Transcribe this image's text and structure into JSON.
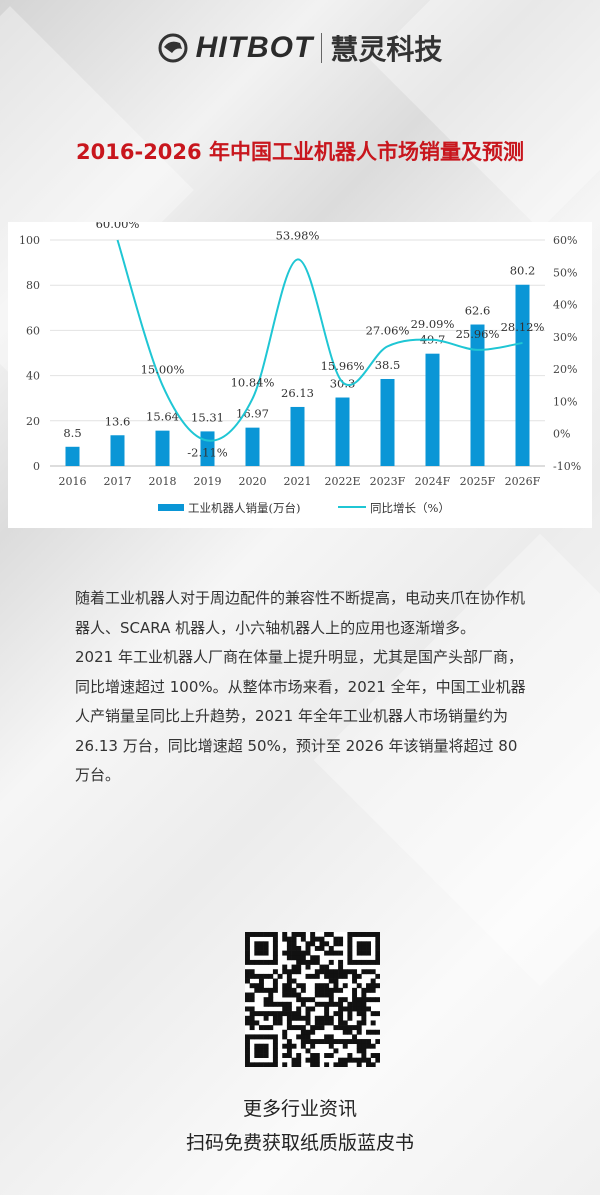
{
  "header": {
    "brand": "HITBOT",
    "brand_cn": "慧灵科技"
  },
  "title": "2016-2026 年中国工业机器人市场销量及预测",
  "chart_data": {
    "type": "bar+line",
    "title": "",
    "categories": [
      "2016",
      "2017",
      "2018",
      "2019",
      "2020",
      "2021",
      "2022E",
      "2023F",
      "2024F",
      "2025F",
      "2026F"
    ],
    "series": [
      {
        "name": "工业机器人销量(万台)",
        "type": "bar",
        "axis": "left",
        "values": [
          8.5,
          13.6,
          15.64,
          15.31,
          16.97,
          26.13,
          30.3,
          38.5,
          49.7,
          62.6,
          80.2
        ],
        "labels": [
          "8.5",
          "13.6",
          "15.64",
          "15.31",
          "16.97",
          "26.13",
          "30.3",
          "38.5",
          "49.7",
          "62.6",
          "80.2"
        ],
        "color": "#0a96d6"
      },
      {
        "name": "同比增长（%）",
        "type": "line",
        "axis": "right",
        "values": [
          null,
          60.0,
          15.0,
          -2.11,
          10.84,
          53.98,
          15.96,
          27.06,
          29.09,
          25.96,
          28.12
        ],
        "labels": [
          "",
          "60.00%",
          "15.00%",
          "-2.11%",
          "10.84%",
          "53.98%",
          "15.96%",
          "27.06%",
          "29.09%",
          "25.96%",
          "28.12%"
        ],
        "color": "#1fc6d4"
      }
    ],
    "left_axis": {
      "range": [
        0,
        100
      ],
      "ticks": [
        "0",
        "20",
        "40",
        "60",
        "80",
        "100"
      ]
    },
    "right_axis": {
      "range": [
        -10,
        60
      ],
      "ticks": [
        "-10%",
        "0%",
        "10%",
        "20%",
        "30%",
        "40%",
        "50%",
        "60%"
      ]
    },
    "grid": true,
    "legend": "bottom"
  },
  "paragraphs": [
    "随着工业机器人对于周边配件的兼容性不断提高，电动夹爪在协作机器人、SCARA 机器人，小六轴机器人上的应用也逐渐增多。",
    "2021 年工业机器人厂商在体量上提升明显，尤其是国产头部厂商，同比增速超过 100%。从整体市场来看，2021 全年，中国工业机器人产销量呈同比上升趋势，2021 年全年工业机器人市场销量约为 26.13 万台，同比增速超 50%，预计至 2026 年该销量将超过 80 万台。"
  ],
  "footer": {
    "line1": "更多行业资讯",
    "line2": "扫码免费获取纸质版蓝皮书"
  },
  "colors": {
    "title": "#c8161d",
    "bar": "#0a96d6",
    "line": "#1fc6d4",
    "logo_red": "#d7261e"
  }
}
